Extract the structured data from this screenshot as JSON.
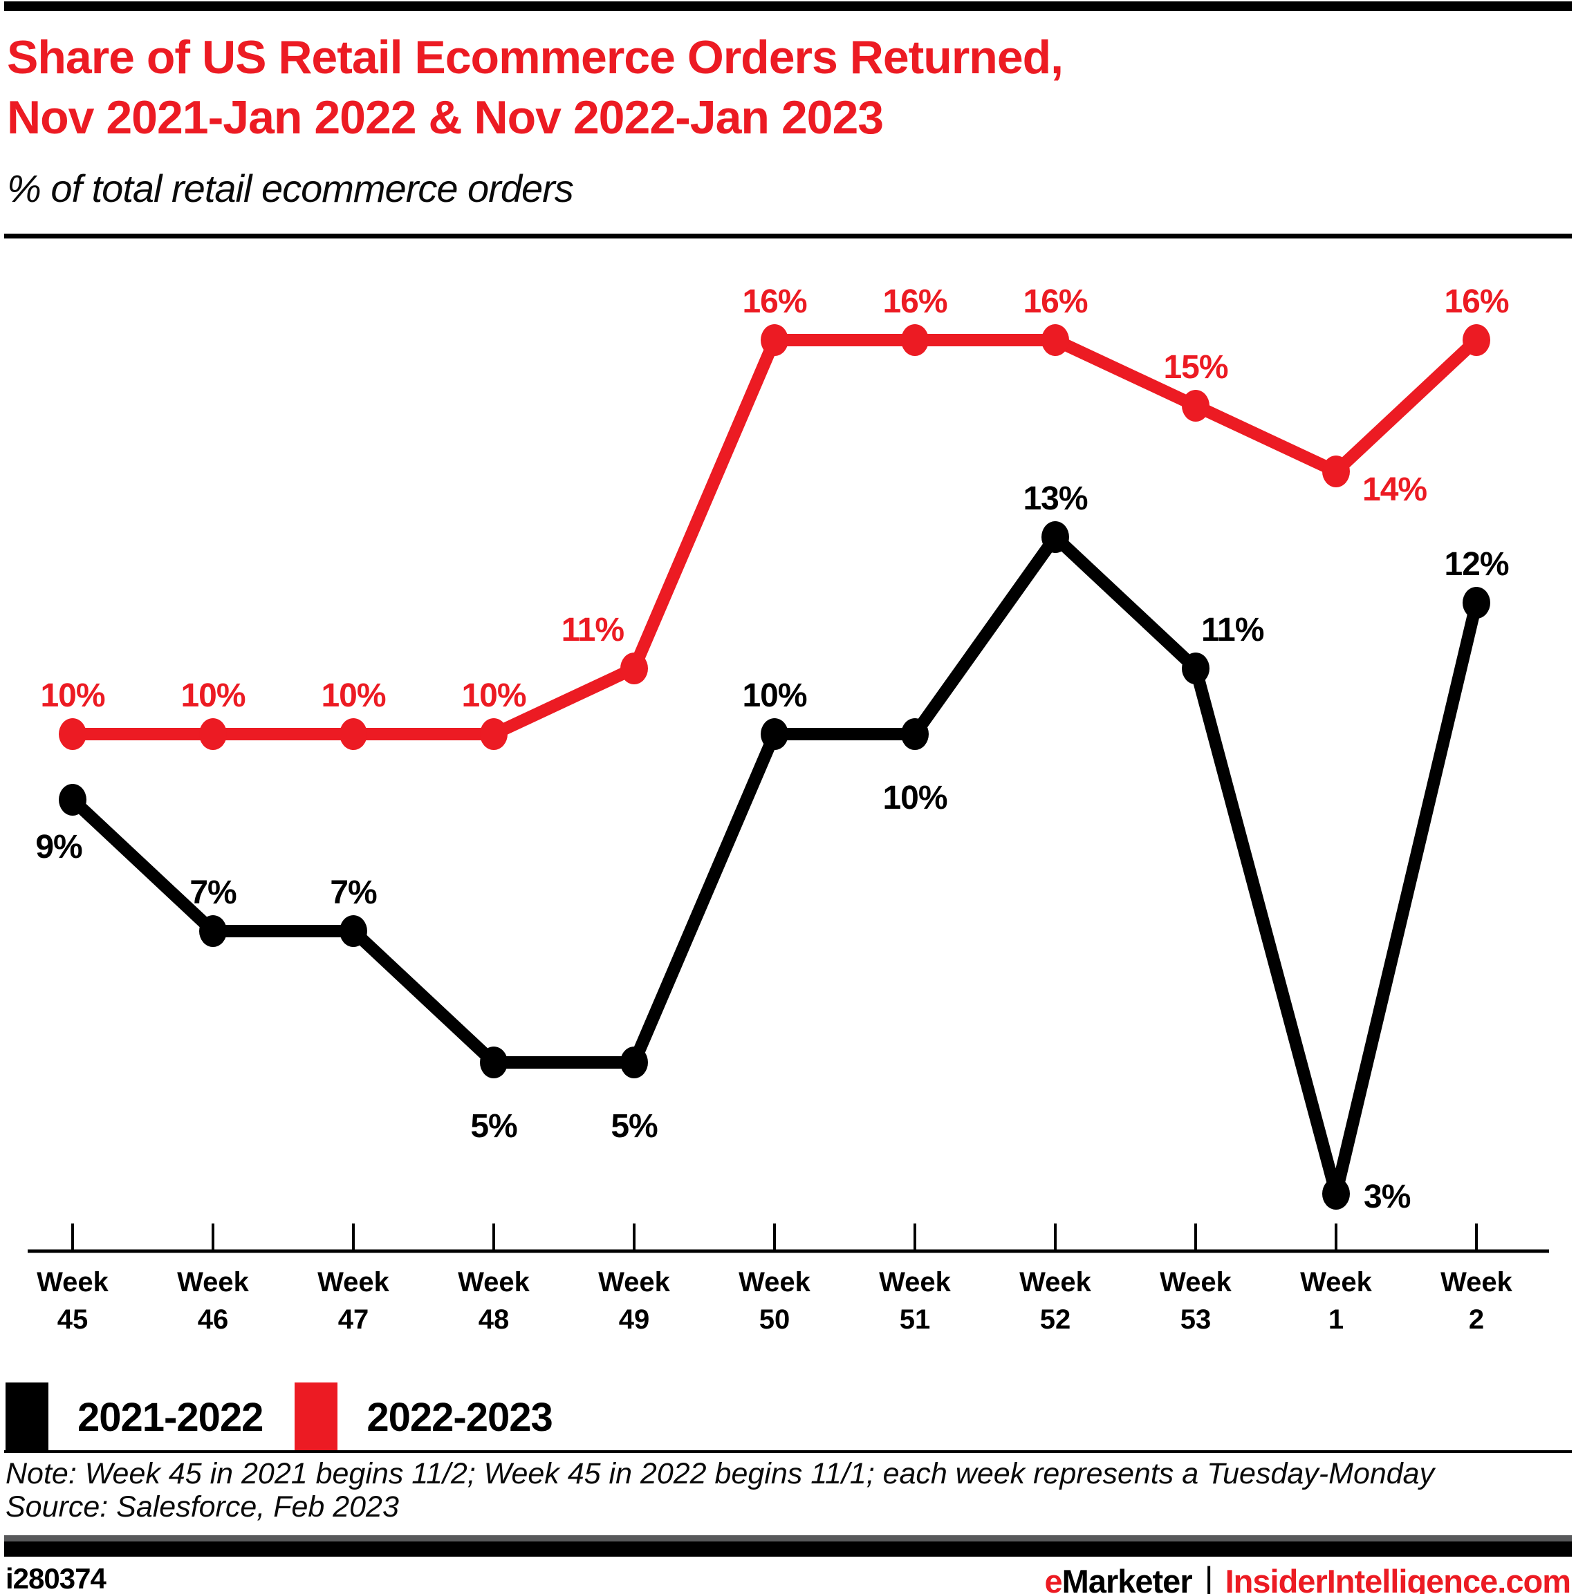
{
  "header": {
    "title_line1": "Share of US Retail Ecommerce Orders Returned,",
    "title_line2": "Nov 2021-Jan 2022 & Nov 2022-Jan 2023",
    "subtitle": "% of total retail ecommerce orders"
  },
  "colors": {
    "accent_red": "#EC1B23",
    "series_black": "#000000",
    "footer_bar_gray": "#58595B"
  },
  "chart_data": {
    "type": "line",
    "title": "Share of US Retail Ecommerce Orders Returned, Nov 2021-Jan 2022 & Nov 2022-Jan 2023",
    "subtitle": "% of total retail ecommerce orders",
    "value_suffix": "%",
    "xlabel": "",
    "ylabel": "",
    "ylim": [
      0,
      18
    ],
    "grid": false,
    "legend_position": "bottom-left",
    "categories": [
      "Week 45",
      "Week 46",
      "Week 47",
      "Week 48",
      "Week 49",
      "Week 50",
      "Week 51",
      "Week 52",
      "Week 53",
      "Week 1",
      "Week 2"
    ],
    "series": [
      {
        "name": "2021-2022",
        "color": "#000000",
        "values": [
          9,
          7,
          7,
          5,
          5,
          10,
          10,
          13,
          11,
          3,
          12
        ],
        "label_positions": [
          "below-left",
          "above",
          "above",
          "below-far",
          "below-far",
          "above",
          "below-far",
          "above",
          "above-right",
          "right",
          "above"
        ]
      },
      {
        "name": "2022-2023",
        "color": "#EC1B23",
        "values": [
          10,
          10,
          10,
          10,
          11,
          16,
          16,
          16,
          15,
          14,
          16
        ],
        "label_positions": [
          "above",
          "above",
          "above",
          "above",
          "above-left",
          "above",
          "above",
          "above",
          "above",
          "right-down",
          "above"
        ]
      }
    ]
  },
  "legend": {
    "items": [
      {
        "label": "2021-2022",
        "color": "#000000"
      },
      {
        "label": "2022-2023",
        "color": "#EC1B23"
      }
    ]
  },
  "note": {
    "text": "Note: Week 45 in 2021 begins 11/2; Week 45 in 2022 begins 11/1; each week represents a Tuesday-Monday"
  },
  "source": {
    "text": "Source: Salesforce, Feb 2023"
  },
  "footer": {
    "chart_id": "i280374",
    "brand_e": "e",
    "brand_rest": "Marketer",
    "separator": "|",
    "site": "InsiderIntelligence.com"
  }
}
